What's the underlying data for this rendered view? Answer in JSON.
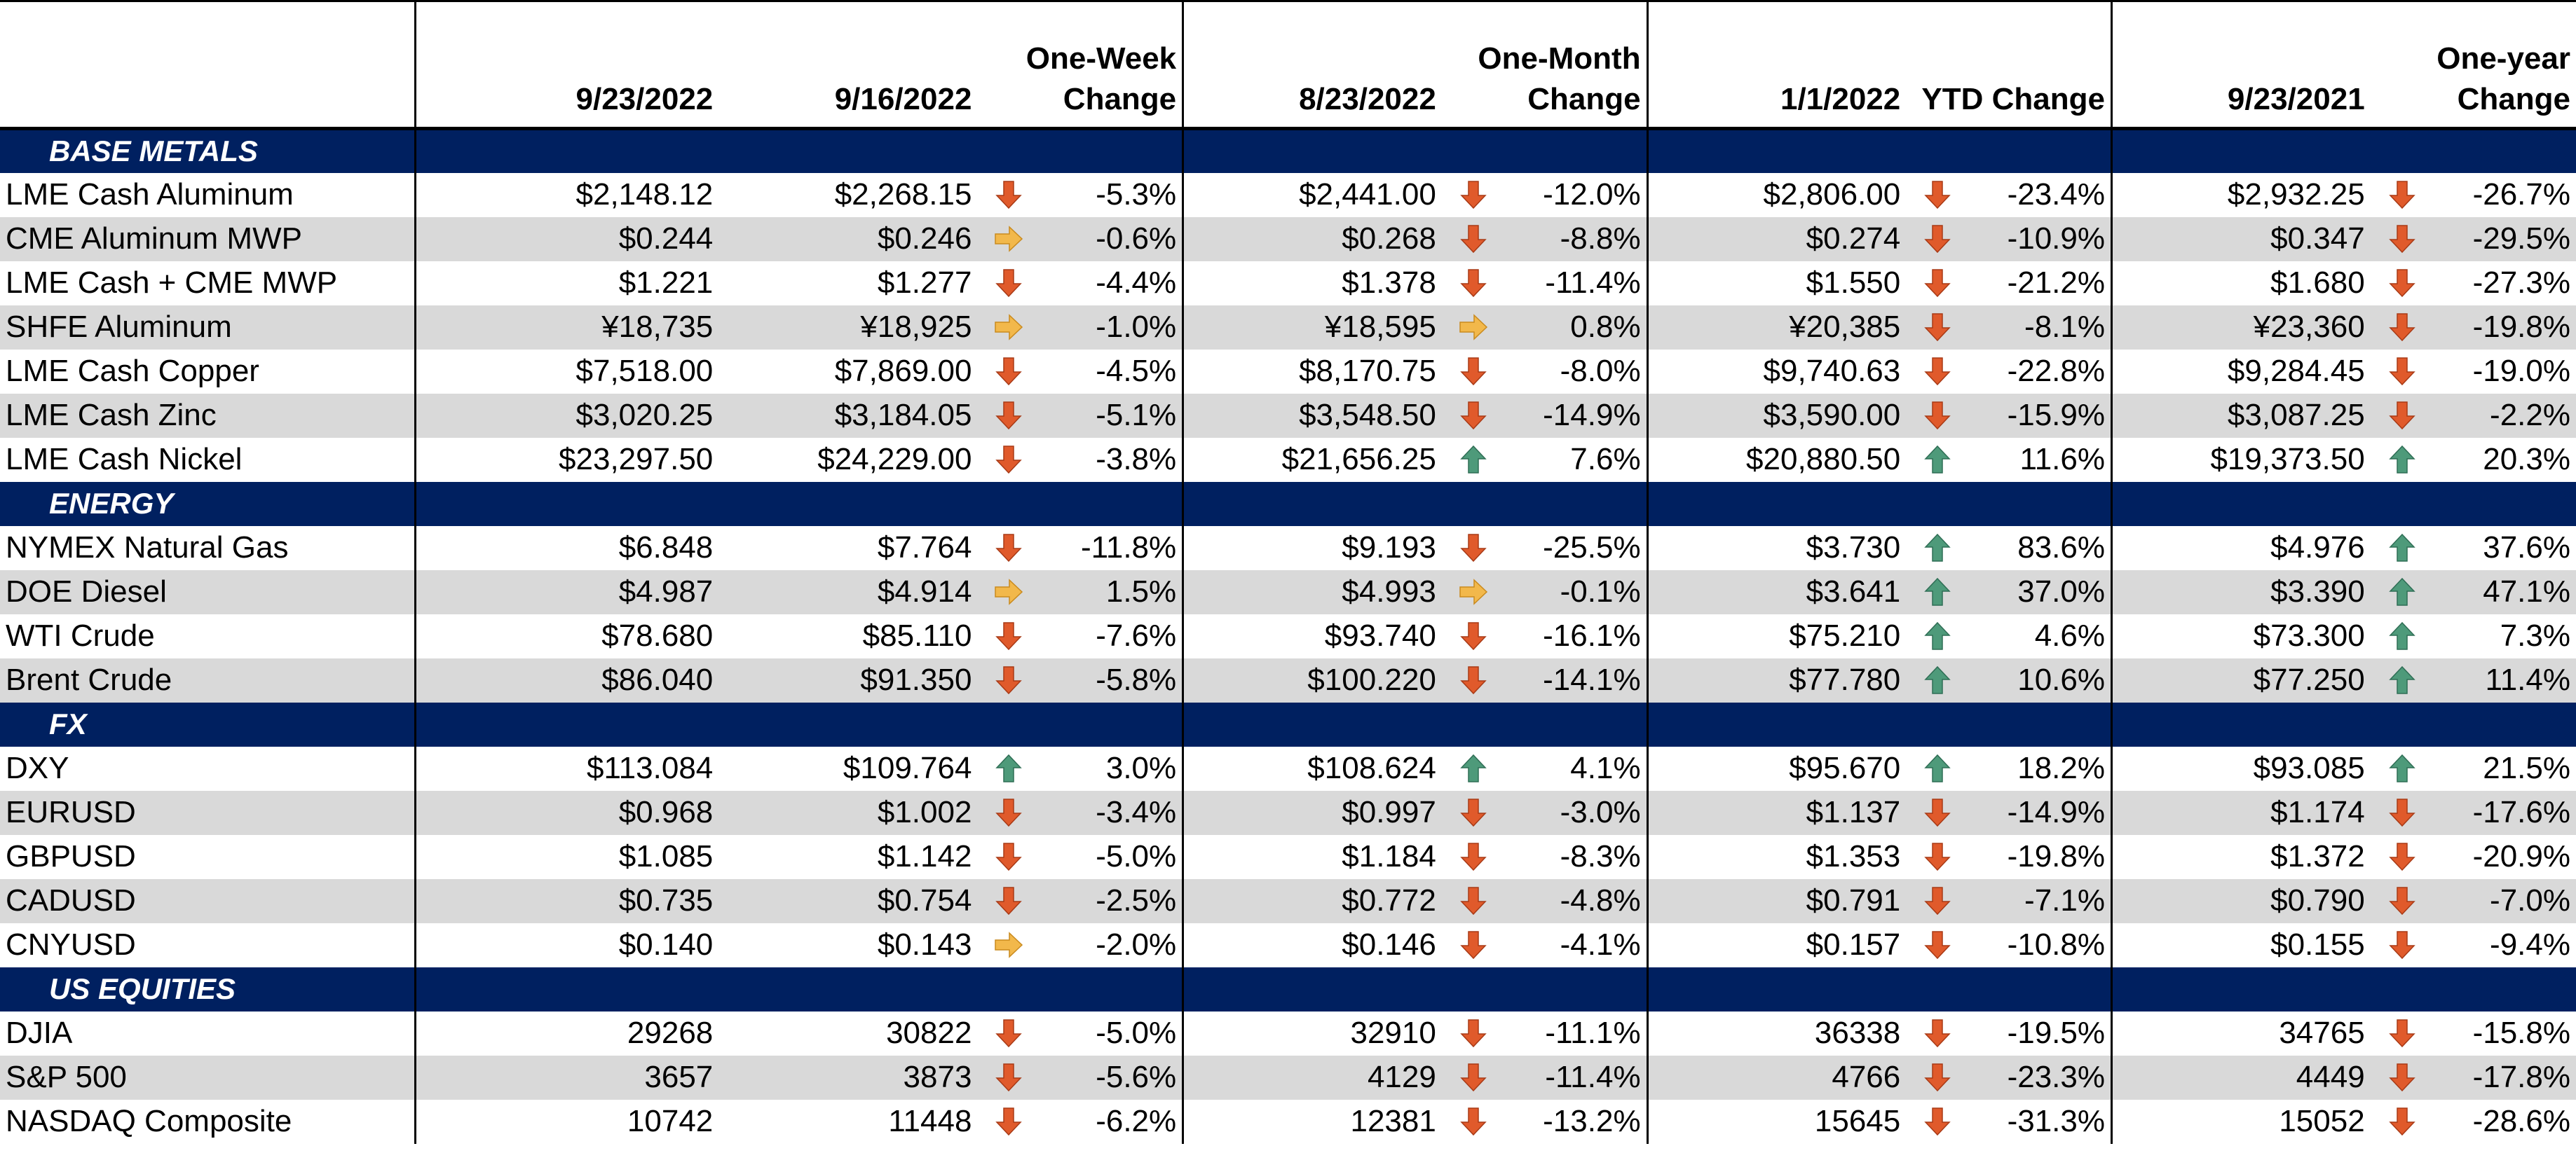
{
  "headers": {
    "blank": "",
    "d1": "9/23/2022",
    "d2": "9/16/2022",
    "wk_line1": "One-Week",
    "wk_line2": "Change",
    "d3": "8/23/2022",
    "mo_line1": "One-Month",
    "mo_line2": "Change",
    "d4": "1/1/2022",
    "ytd": "YTD Change",
    "d5": "9/23/2021",
    "yr_line1": "One-year",
    "yr_line2": "Change"
  },
  "colors": {
    "section_bg": "#002060",
    "down": "#e05a2b",
    "up": "#4e9a7a",
    "flat": "#f2b84b",
    "alt_row": "#d9d9d9"
  },
  "sections": [
    {
      "title": "BASE METALS",
      "rows": [
        {
          "label": "LME Cash Aluminum",
          "v1": "$2,148.12",
          "v2": "$2,268.15",
          "a1": "down",
          "c1": "-5.3%",
          "v3": "$2,441.00",
          "a2": "down",
          "c2": "-12.0%",
          "v4": "$2,806.00",
          "a3": "down",
          "c3": "-23.4%",
          "v5": "$2,932.25",
          "a4": "down",
          "c4": "-26.7%"
        },
        {
          "label": "CME Aluminum MWP",
          "v1": "$0.244",
          "v2": "$0.246",
          "a1": "flat",
          "c1": "-0.6%",
          "v3": "$0.268",
          "a2": "down",
          "c2": "-8.8%",
          "v4": "$0.274",
          "a3": "down",
          "c3": "-10.9%",
          "v5": "$0.347",
          "a4": "down",
          "c4": "-29.5%"
        },
        {
          "label": "LME Cash + CME MWP",
          "v1": "$1.221",
          "v2": "$1.277",
          "a1": "down",
          "c1": "-4.4%",
          "v3": "$1.378",
          "a2": "down",
          "c2": "-11.4%",
          "v4": "$1.550",
          "a3": "down",
          "c3": "-21.2%",
          "v5": "$1.680",
          "a4": "down",
          "c4": "-27.3%"
        },
        {
          "label": "SHFE Aluminum",
          "v1": "¥18,735",
          "v2": "¥18,925",
          "a1": "flat",
          "c1": "-1.0%",
          "v3": "¥18,595",
          "a2": "flat",
          "c2": "0.8%",
          "v4": "¥20,385",
          "a3": "down",
          "c3": "-8.1%",
          "v5": "¥23,360",
          "a4": "down",
          "c4": "-19.8%"
        },
        {
          "label": "LME Cash Copper",
          "v1": "$7,518.00",
          "v2": "$7,869.00",
          "a1": "down",
          "c1": "-4.5%",
          "v3": "$8,170.75",
          "a2": "down",
          "c2": "-8.0%",
          "v4": "$9,740.63",
          "a3": "down",
          "c3": "-22.8%",
          "v5": "$9,284.45",
          "a4": "down",
          "c4": "-19.0%"
        },
        {
          "label": "LME Cash Zinc",
          "v1": "$3,020.25",
          "v2": "$3,184.05",
          "a1": "down",
          "c1": "-5.1%",
          "v3": "$3,548.50",
          "a2": "down",
          "c2": "-14.9%",
          "v4": "$3,590.00",
          "a3": "down",
          "c3": "-15.9%",
          "v5": "$3,087.25",
          "a4": "down",
          "c4": "-2.2%"
        },
        {
          "label": "LME Cash Nickel",
          "v1": "$23,297.50",
          "v2": "$24,229.00",
          "a1": "down",
          "c1": "-3.8%",
          "v3": "$21,656.25",
          "a2": "up",
          "c2": "7.6%",
          "v4": "$20,880.50",
          "a3": "up",
          "c3": "11.6%",
          "v5": "$19,373.50",
          "a4": "up",
          "c4": "20.3%"
        }
      ]
    },
    {
      "title": "ENERGY",
      "rows": [
        {
          "label": "NYMEX Natural Gas",
          "v1": "$6.848",
          "v2": "$7.764",
          "a1": "down",
          "c1": "-11.8%",
          "v3": "$9.193",
          "a2": "down",
          "c2": "-25.5%",
          "v4": "$3.730",
          "a3": "up",
          "c3": "83.6%",
          "v5": "$4.976",
          "a4": "up",
          "c4": "37.6%"
        },
        {
          "label": "DOE Diesel",
          "v1": "$4.987",
          "v2": "$4.914",
          "a1": "flat",
          "c1": "1.5%",
          "v3": "$4.993",
          "a2": "flat",
          "c2": "-0.1%",
          "v4": "$3.641",
          "a3": "up",
          "c3": "37.0%",
          "v5": "$3.390",
          "a4": "up",
          "c4": "47.1%"
        },
        {
          "label": "WTI Crude",
          "v1": "$78.680",
          "v2": "$85.110",
          "a1": "down",
          "c1": "-7.6%",
          "v3": "$93.740",
          "a2": "down",
          "c2": "-16.1%",
          "v4": "$75.210",
          "a3": "up",
          "c3": "4.6%",
          "v5": "$73.300",
          "a4": "up",
          "c4": "7.3%"
        },
        {
          "label": "Brent Crude",
          "v1": "$86.040",
          "v2": "$91.350",
          "a1": "down",
          "c1": "-5.8%",
          "v3": "$100.220",
          "a2": "down",
          "c2": "-14.1%",
          "v4": "$77.780",
          "a3": "up",
          "c3": "10.6%",
          "v5": "$77.250",
          "a4": "up",
          "c4": "11.4%"
        }
      ]
    },
    {
      "title": "FX",
      "rows": [
        {
          "label": "DXY",
          "v1": "$113.084",
          "v2": "$109.764",
          "a1": "up",
          "c1": "3.0%",
          "v3": "$108.624",
          "a2": "up",
          "c2": "4.1%",
          "v4": "$95.670",
          "a3": "up",
          "c3": "18.2%",
          "v5": "$93.085",
          "a4": "up",
          "c4": "21.5%"
        },
        {
          "label": "EURUSD",
          "v1": "$0.968",
          "v2": "$1.002",
          "a1": "down",
          "c1": "-3.4%",
          "v3": "$0.997",
          "a2": "down",
          "c2": "-3.0%",
          "v4": "$1.137",
          "a3": "down",
          "c3": "-14.9%",
          "v5": "$1.174",
          "a4": "down",
          "c4": "-17.6%"
        },
        {
          "label": "GBPUSD",
          "v1": "$1.085",
          "v2": "$1.142",
          "a1": "down",
          "c1": "-5.0%",
          "v3": "$1.184",
          "a2": "down",
          "c2": "-8.3%",
          "v4": "$1.353",
          "a3": "down",
          "c3": "-19.8%",
          "v5": "$1.372",
          "a4": "down",
          "c4": "-20.9%"
        },
        {
          "label": "CADUSD",
          "v1": "$0.735",
          "v2": "$0.754",
          "a1": "down",
          "c1": "-2.5%",
          "v3": "$0.772",
          "a2": "down",
          "c2": "-4.8%",
          "v4": "$0.791",
          "a3": "down",
          "c3": "-7.1%",
          "v5": "$0.790",
          "a4": "down",
          "c4": "-7.0%"
        },
        {
          "label": "CNYUSD",
          "v1": "$0.140",
          "v2": "$0.143",
          "a1": "flat",
          "c1": "-2.0%",
          "v3": "$0.146",
          "a2": "down",
          "c2": "-4.1%",
          "v4": "$0.157",
          "a3": "down",
          "c3": "-10.8%",
          "v5": "$0.155",
          "a4": "down",
          "c4": "-9.4%"
        }
      ]
    },
    {
      "title": "US EQUITIES",
      "rows": [
        {
          "label": "DJIA",
          "v1": "29268",
          "v2": "30822",
          "a1": "down",
          "c1": "-5.0%",
          "v3": "32910",
          "a2": "down",
          "c2": "-11.1%",
          "v4": "36338",
          "a3": "down",
          "c3": "-19.5%",
          "v5": "34765",
          "a4": "down",
          "c4": "-15.8%"
        },
        {
          "label": "S&P 500",
          "v1": "3657",
          "v2": "3873",
          "a1": "down",
          "c1": "-5.6%",
          "v3": "4129",
          "a2": "down",
          "c2": "-11.4%",
          "v4": "4766",
          "a3": "down",
          "c3": "-23.3%",
          "v5": "4449",
          "a4": "down",
          "c4": "-17.8%"
        },
        {
          "label": "NASDAQ Composite",
          "v1": "10742",
          "v2": "11448",
          "a1": "down",
          "c1": "-6.2%",
          "v3": "12381",
          "a2": "down",
          "c2": "-13.2%",
          "v4": "15645",
          "a3": "down",
          "c3": "-31.3%",
          "v5": "15052",
          "a4": "down",
          "c4": "-28.6%"
        }
      ]
    }
  ]
}
